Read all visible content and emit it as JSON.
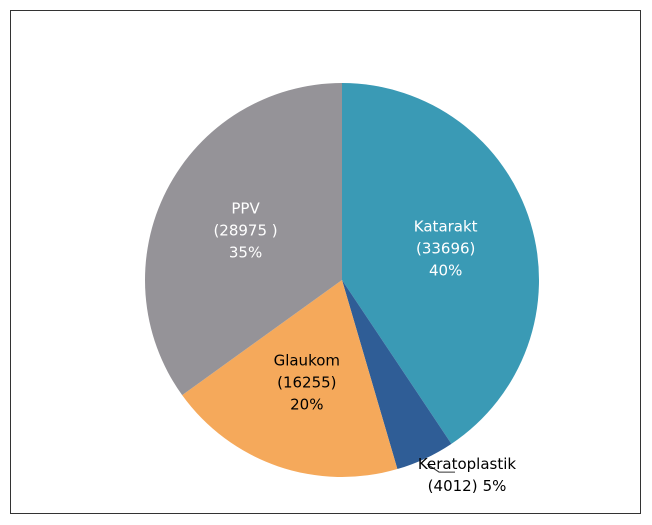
{
  "chart_data": {
    "type": "pie",
    "categories": [
      "Katarakt",
      "Keratoplastik",
      "Glaukom",
      "PPV"
    ],
    "values": [
      33696,
      4012,
      16255,
      28975
    ],
    "value_labels": [
      "(33696)",
      "(4012)",
      "(16255)",
      "(28975 )"
    ],
    "percent_labels": [
      "40%",
      "5%",
      "20%",
      "35%"
    ],
    "colors": [
      "#3a9ab5",
      "#2f5d96",
      "#f5a95b",
      "#959398"
    ],
    "label_colors": [
      "#ffffff",
      "#000000",
      "#000000",
      "#ffffff"
    ]
  }
}
